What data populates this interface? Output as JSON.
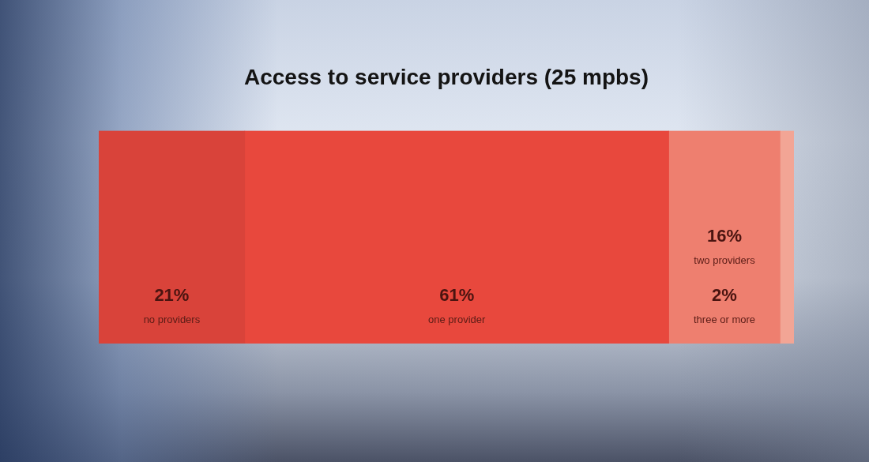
{
  "chart_data": {
    "type": "bar",
    "title": "Access to service providers (25 mpbs)",
    "orientation": "horizontal",
    "stacked": true,
    "data_labels": true,
    "tick_labels": false,
    "grid": false,
    "categories": [
      null
    ],
    "xlim": [
      0,
      100
    ],
    "series": [
      {
        "name": "no providers",
        "color": "#d9433a",
        "values": [
          21
        ],
        "value_labels": [
          "21%"
        ]
      },
      {
        "name": "one provider",
        "color": "#e8483d",
        "values": [
          61
        ],
        "value_labels": [
          "61%"
        ]
      },
      {
        "name": "two providers",
        "color": "#ee7f6f",
        "values": [
          16
        ],
        "value_labels": [
          "16%"
        ]
      },
      {
        "name": "three or more",
        "color": "#f2a595",
        "values": [
          2
        ],
        "value_labels": [
          "2%"
        ]
      }
    ]
  }
}
